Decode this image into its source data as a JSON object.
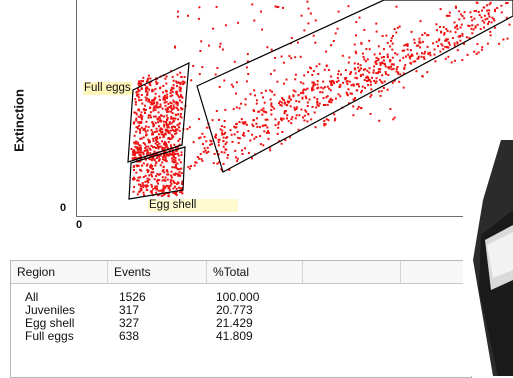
{
  "plot": {
    "y_axis_label": "Extinction",
    "y_origin_label": "0",
    "x_origin_label": "0",
    "regions": [
      {
        "name": "Full eggs"
      },
      {
        "name": "Egg shell"
      },
      {
        "name": "Juveniles"
      }
    ],
    "colors": {
      "events": "#ee1111",
      "region_outline": "#000000",
      "label_bg": "#fff6ba"
    }
  },
  "table": {
    "columns": [
      "Region",
      "Events",
      "%Total",
      "",
      ""
    ],
    "rows": [
      {
        "region": "All",
        "events": "1526",
        "pct": "100.000"
      },
      {
        "region": "Juveniles",
        "events": "317",
        "pct": "20.773"
      },
      {
        "region": "Egg shell",
        "events": "327",
        "pct": "21.429"
      },
      {
        "region": "Full eggs",
        "events": "638",
        "pct": "41.809"
      }
    ]
  }
}
